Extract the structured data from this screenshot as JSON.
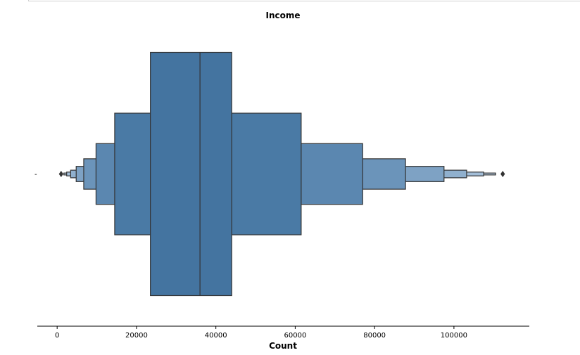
{
  "chart_data": {
    "type": "boxenplot",
    "title": "Income",
    "xlabel": "Count",
    "ylabel": "",
    "y_tick_label": "-",
    "xlim": [
      -5000,
      119000
    ],
    "x_ticks": [
      0,
      20000,
      40000,
      60000,
      80000,
      100000
    ],
    "x_tick_labels": [
      "0",
      "20000",
      "40000",
      "60000",
      "80000",
      "100000"
    ],
    "median": 36000,
    "boxes": [
      {
        "level": 1,
        "low": 23500,
        "high": 44000,
        "color": "#4474a0"
      },
      {
        "level": 2,
        "low": 14500,
        "high": 61500,
        "color": "#4a7aa5"
      },
      {
        "level": 3,
        "low": 9800,
        "high": 77000,
        "color": "#5b87b0"
      },
      {
        "level": 4,
        "low": 6700,
        "high": 87800,
        "color": "#6b94ba"
      },
      {
        "level": 5,
        "low": 4800,
        "high": 97500,
        "color": "#7ea2c4"
      },
      {
        "level": 6,
        "low": 3400,
        "high": 103200,
        "color": "#90b0ce"
      },
      {
        "level": 7,
        "low": 2400,
        "high": 107500,
        "color": "#a3bed8"
      },
      {
        "level": 8,
        "low": 1700,
        "high": 110500,
        "color": "#b7cce1"
      }
    ],
    "outliers": [
      1000,
      112300
    ],
    "grid": false,
    "colors": {
      "base": "#3d72a2",
      "edge": "#333333",
      "outlier": "#333333"
    }
  }
}
